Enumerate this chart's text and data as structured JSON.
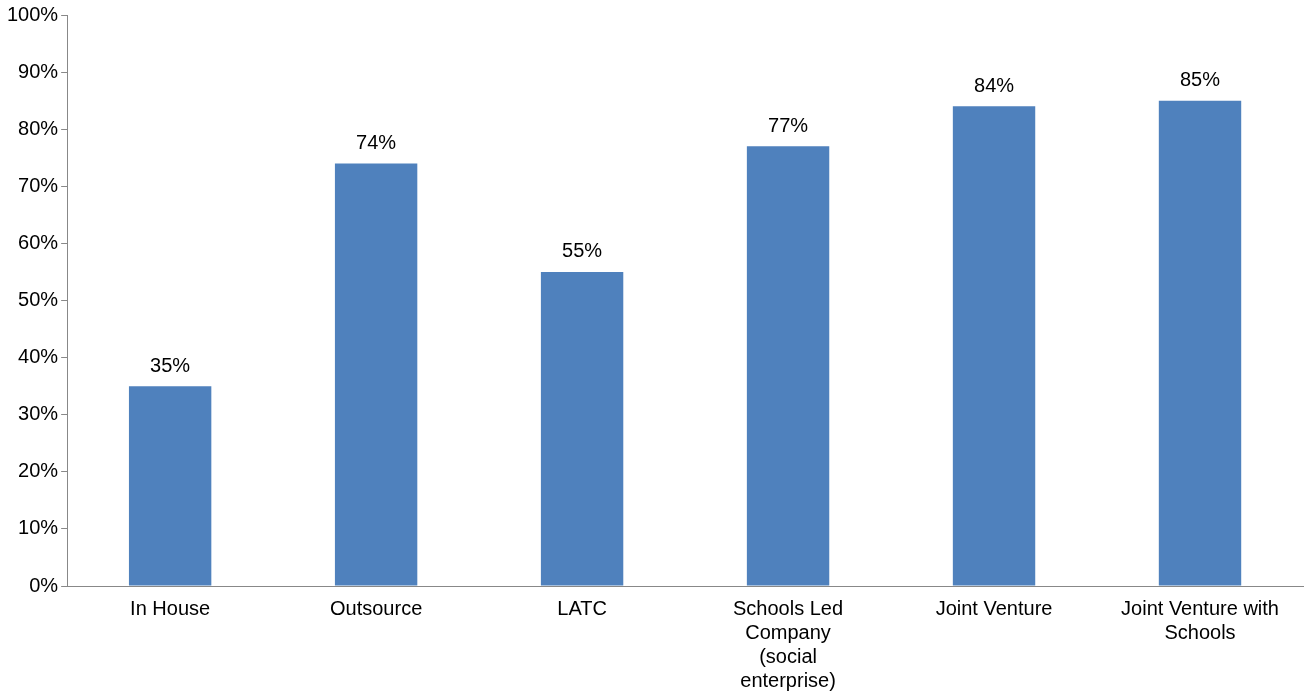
{
  "chart_data": {
    "type": "bar",
    "categories": [
      "In House",
      "Outsource",
      "LATC",
      "Schools Led Company (social enterprise)",
      "Joint Venture",
      "Joint Venture with Schools"
    ],
    "values": [
      35,
      74,
      55,
      77,
      84,
      85
    ],
    "color": "#4f81bd",
    "ylim": [
      0,
      100
    ],
    "yticks": [
      {
        "value": 0,
        "label": "0%"
      },
      {
        "value": 10,
        "label": "10%"
      },
      {
        "value": 20,
        "label": "20%"
      },
      {
        "value": 30,
        "label": "30%"
      },
      {
        "value": 40,
        "label": "40%"
      },
      {
        "value": 50,
        "label": "50%"
      },
      {
        "value": 60,
        "label": "60%"
      },
      {
        "value": 70,
        "label": "70%"
      },
      {
        "value": 80,
        "label": "80%"
      },
      {
        "value": 90,
        "label": "90%"
      },
      {
        "value": 100,
        "label": "100%"
      }
    ],
    "value_labels": [
      "35%",
      "74%",
      "55%",
      "77%",
      "84%",
      "85%"
    ],
    "grid": false,
    "legend": false
  }
}
